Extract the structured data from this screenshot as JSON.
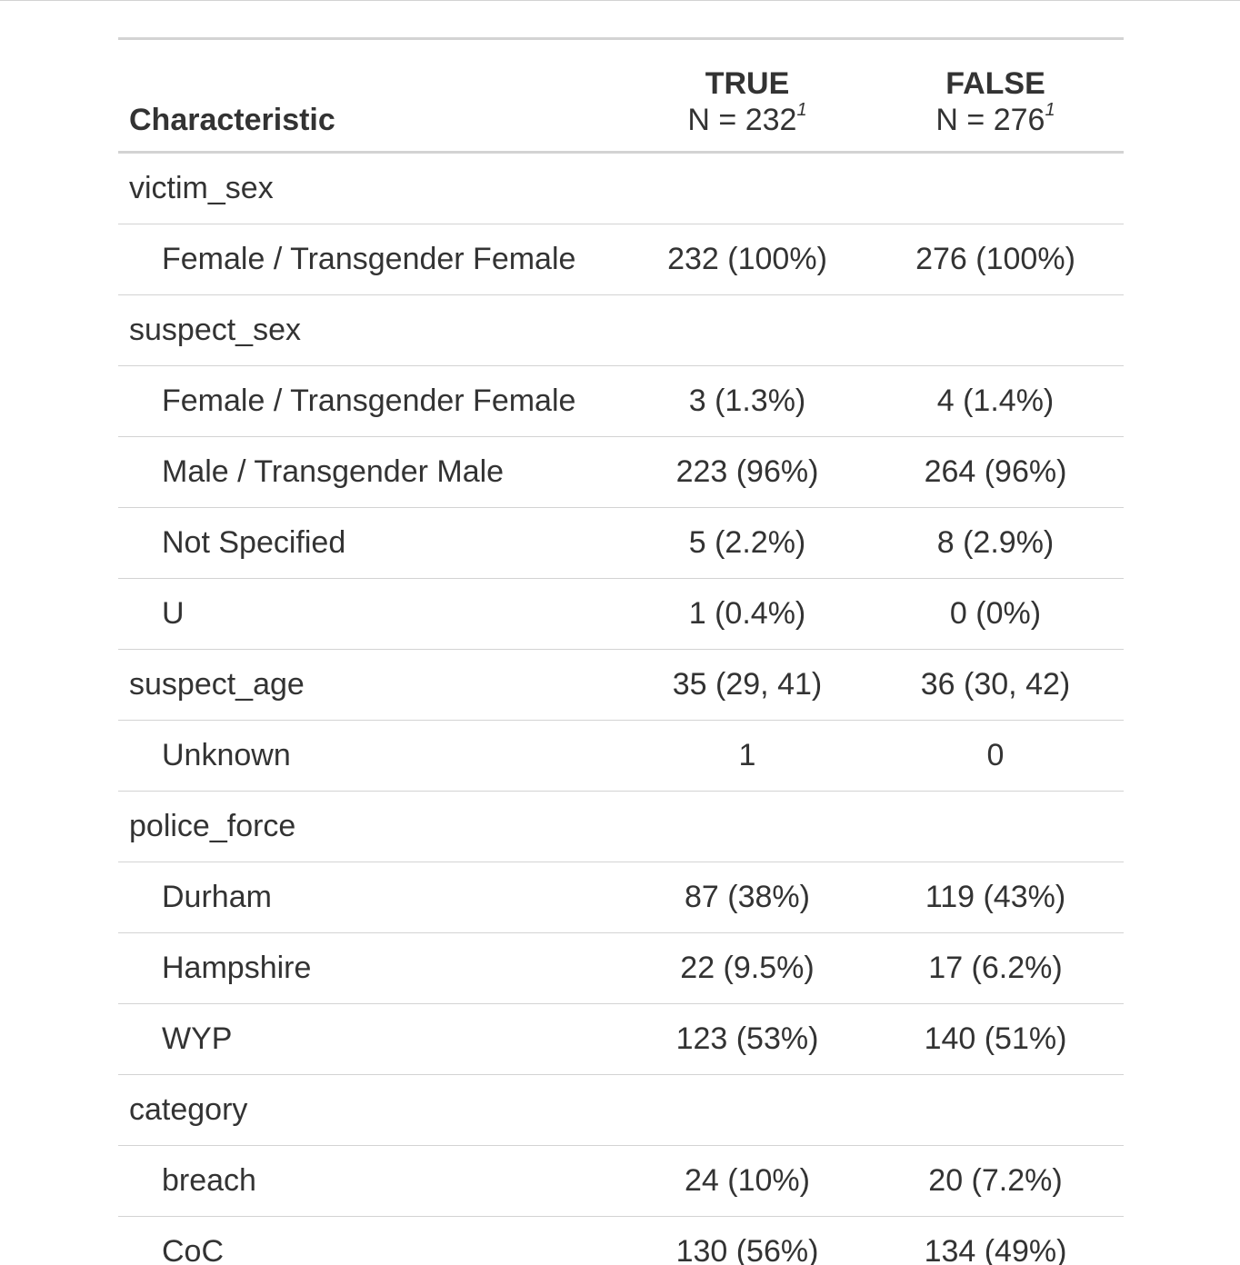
{
  "header": {
    "characteristic": "Characteristic",
    "groups": [
      {
        "name": "TRUE",
        "n": "N = 232",
        "footnote_mark": "1"
      },
      {
        "name": "FALSE",
        "n": "N = 276",
        "footnote_mark": "1"
      }
    ]
  },
  "rows": [
    {
      "label": "victim_sex",
      "true": "",
      "false": ""
    },
    {
      "label": "Female / Transgender Female",
      "true": "232 (100%)",
      "false": "276 (100%)"
    },
    {
      "label": "suspect_sex",
      "true": "",
      "false": ""
    },
    {
      "label": "Female / Transgender Female",
      "true": "3 (1.3%)",
      "false": "4 (1.4%)"
    },
    {
      "label": "Male / Transgender Male",
      "true": "223 (96%)",
      "false": "264 (96%)"
    },
    {
      "label": "Not Specified",
      "true": "5 (2.2%)",
      "false": "8 (2.9%)"
    },
    {
      "label": "U",
      "true": "1 (0.4%)",
      "false": "0 (0%)"
    },
    {
      "label": "suspect_age",
      "true": "35 (29, 41)",
      "false": "36 (30, 42)"
    },
    {
      "label": "Unknown",
      "true": "1",
      "false": "0"
    },
    {
      "label": "police_force",
      "true": "",
      "false": ""
    },
    {
      "label": "Durham",
      "true": "87 (38%)",
      "false": "119 (43%)"
    },
    {
      "label": "Hampshire",
      "true": "22 (9.5%)",
      "false": "17 (6.2%)"
    },
    {
      "label": "WYP",
      "true": "123 (53%)",
      "false": "140 (51%)"
    },
    {
      "label": "category",
      "true": "",
      "false": ""
    },
    {
      "label": "breach",
      "true": "24 (10%)",
      "false": "20 (7.2%)"
    },
    {
      "label": "CoC",
      "true": "130 (56%)",
      "false": "134 (49%)"
    }
  ]
}
